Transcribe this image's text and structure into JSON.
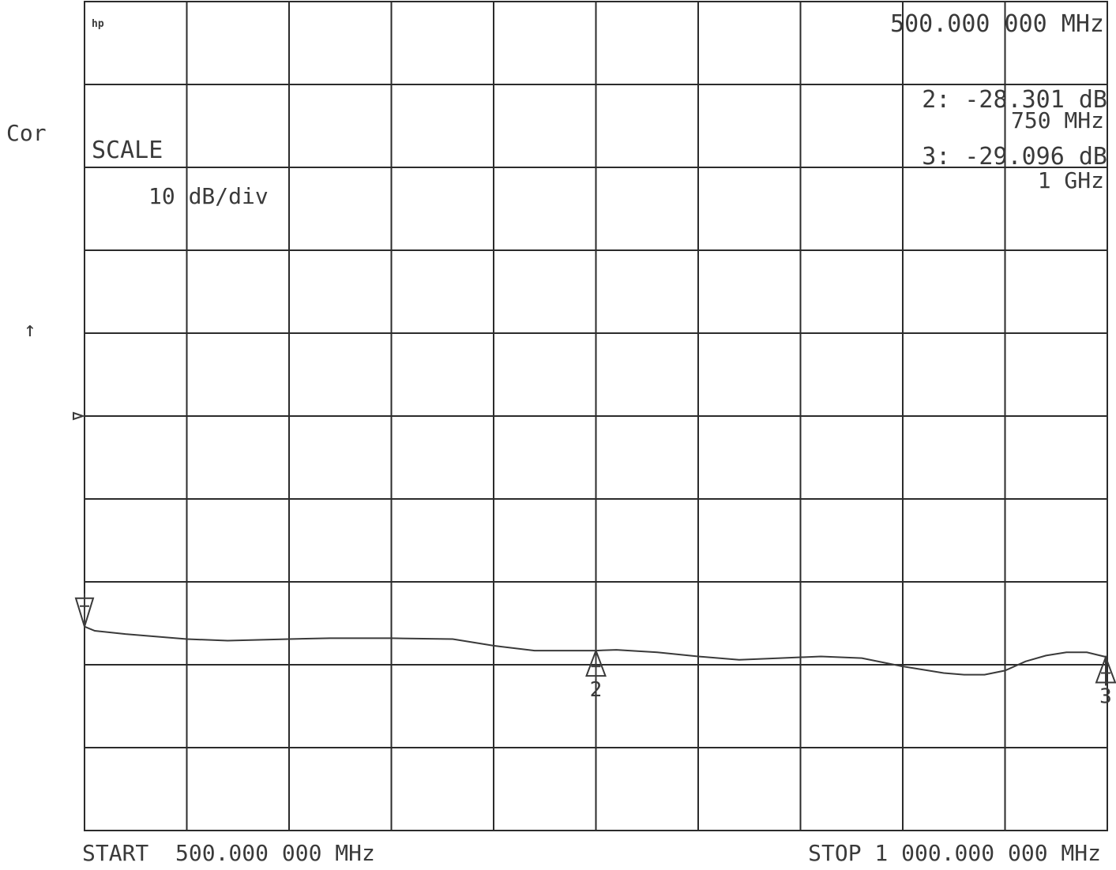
{
  "annotations": {
    "logo": "hp",
    "correction": "Cor",
    "ref_arrow": "↑",
    "scale_label": "SCALE",
    "scale_value": "10 dB/div",
    "active_marker_freq": "500.000 000 MHz",
    "marker2_value": "2: -28.301 dB",
    "marker2_freq": "750 MHz",
    "marker3_value": "3: -29.096 dB",
    "marker3_freq": "1 GHz",
    "start_label": "START  500.000 000 MHz",
    "stop_label": "STOP 1 000.000 000 MHz"
  },
  "colors": {
    "ink": "#3a3a3a",
    "grid": "#2b2b2b",
    "background": "#ffffff"
  },
  "chart_data": {
    "type": "line",
    "title": "",
    "xlabel": "",
    "ylabel": "",
    "x_unit": "MHz",
    "y_unit": "dB",
    "xlim": [
      500,
      1000
    ],
    "x_divisions": 10,
    "y_divisions": 10,
    "y_scale_per_div": 10,
    "reference_position_div": 5,
    "grid": true,
    "series": [
      {
        "x": [
          500,
          505,
          520,
          550,
          570,
          600,
          620,
          650,
          680,
          700,
          720,
          740,
          750,
          760,
          780,
          800,
          820,
          840,
          860,
          880,
          900,
          920,
          930,
          940,
          950,
          960,
          970,
          980,
          990,
          1000
        ],
        "values": [
          -25.4,
          -25.9,
          -26.3,
          -26.9,
          -27.1,
          -26.9,
          -26.8,
          -26.8,
          -26.9,
          -27.7,
          -28.3,
          -28.3,
          -28.3,
          -28.2,
          -28.5,
          -29.0,
          -29.4,
          -29.2,
          -29.0,
          -29.2,
          -30.2,
          -31.0,
          -31.2,
          -31.2,
          -30.7,
          -29.6,
          -28.9,
          -28.5,
          -28.5,
          -29.1
        ]
      }
    ],
    "markers": [
      {
        "id": "1",
        "x": 500,
        "y": -25.4,
        "pointer": "down"
      },
      {
        "id": "2",
        "x": 750,
        "y": -28.301,
        "pointer": "up"
      },
      {
        "id": "3",
        "x": 1000,
        "y": -29.096,
        "pointer": "up"
      }
    ]
  }
}
